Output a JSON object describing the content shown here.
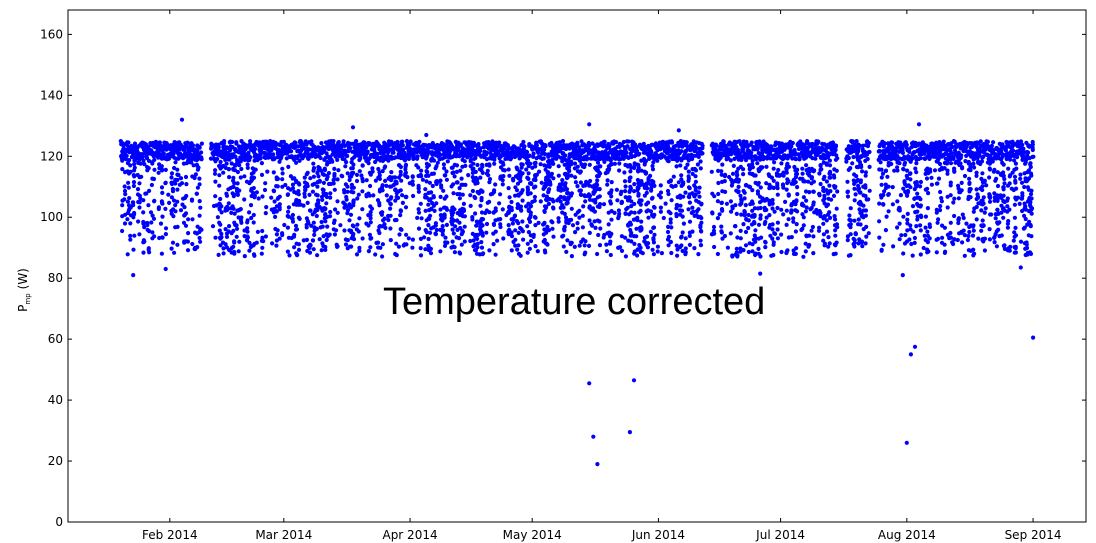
{
  "chart_data": {
    "type": "scatter",
    "title": "",
    "ylabel": "P",
    "ylabel_subscript": "mp",
    "ylabel_unit": "(W)",
    "xlabel": "",
    "x_type": "date",
    "xlim": [
      "2014-01-07",
      "2014-09-14"
    ],
    "ylim": [
      0,
      168
    ],
    "x_ticks": [
      {
        "date": "2014-02-01",
        "label": "Feb 2014"
      },
      {
        "date": "2014-03-01",
        "label": "Mar 2014"
      },
      {
        "date": "2014-04-01",
        "label": "Apr 2014"
      },
      {
        "date": "2014-05-01",
        "label": "May 2014"
      },
      {
        "date": "2014-06-01",
        "label": "Jun 2014"
      },
      {
        "date": "2014-07-01",
        "label": "Jul 2014"
      },
      {
        "date": "2014-08-01",
        "label": "Aug 2014"
      },
      {
        "date": "2014-09-01",
        "label": "Sep 2014"
      }
    ],
    "y_ticks": [
      0,
      20,
      40,
      60,
      80,
      100,
      120,
      140,
      160
    ],
    "grid": false,
    "legend": "none",
    "marker_color": "#0000ff",
    "annotation": "Temperature corrected",
    "period_start": "2014-01-20",
    "period_end": "2014-09-01",
    "typical_ceiling": 124,
    "typical_floor": 85,
    "outliers": [
      {
        "x": "2014-01-23",
        "y": 81
      },
      {
        "x": "2014-01-31",
        "y": 83
      },
      {
        "x": "2014-02-04",
        "y": 132
      },
      {
        "x": "2014-03-18",
        "y": 129.5
      },
      {
        "x": "2014-04-05",
        "y": 127
      },
      {
        "x": "2014-05-15",
        "y": 130.5
      },
      {
        "x": "2014-05-15",
        "y": 45.5
      },
      {
        "x": "2014-05-16",
        "y": 28
      },
      {
        "x": "2014-05-17",
        "y": 19
      },
      {
        "x": "2014-05-25",
        "y": 29.5
      },
      {
        "x": "2014-05-26",
        "y": 46.5
      },
      {
        "x": "2014-06-06",
        "y": 128.5
      },
      {
        "x": "2014-06-26",
        "y": 81.5
      },
      {
        "x": "2014-07-31",
        "y": 81
      },
      {
        "x": "2014-08-01",
        "y": 26
      },
      {
        "x": "2014-08-02",
        "y": 55
      },
      {
        "x": "2014-08-03",
        "y": 57.5
      },
      {
        "x": "2014-08-04",
        "y": 130.5
      },
      {
        "x": "2014-08-29",
        "y": 83.5
      },
      {
        "x": "2014-09-01",
        "y": 60.5
      }
    ]
  }
}
